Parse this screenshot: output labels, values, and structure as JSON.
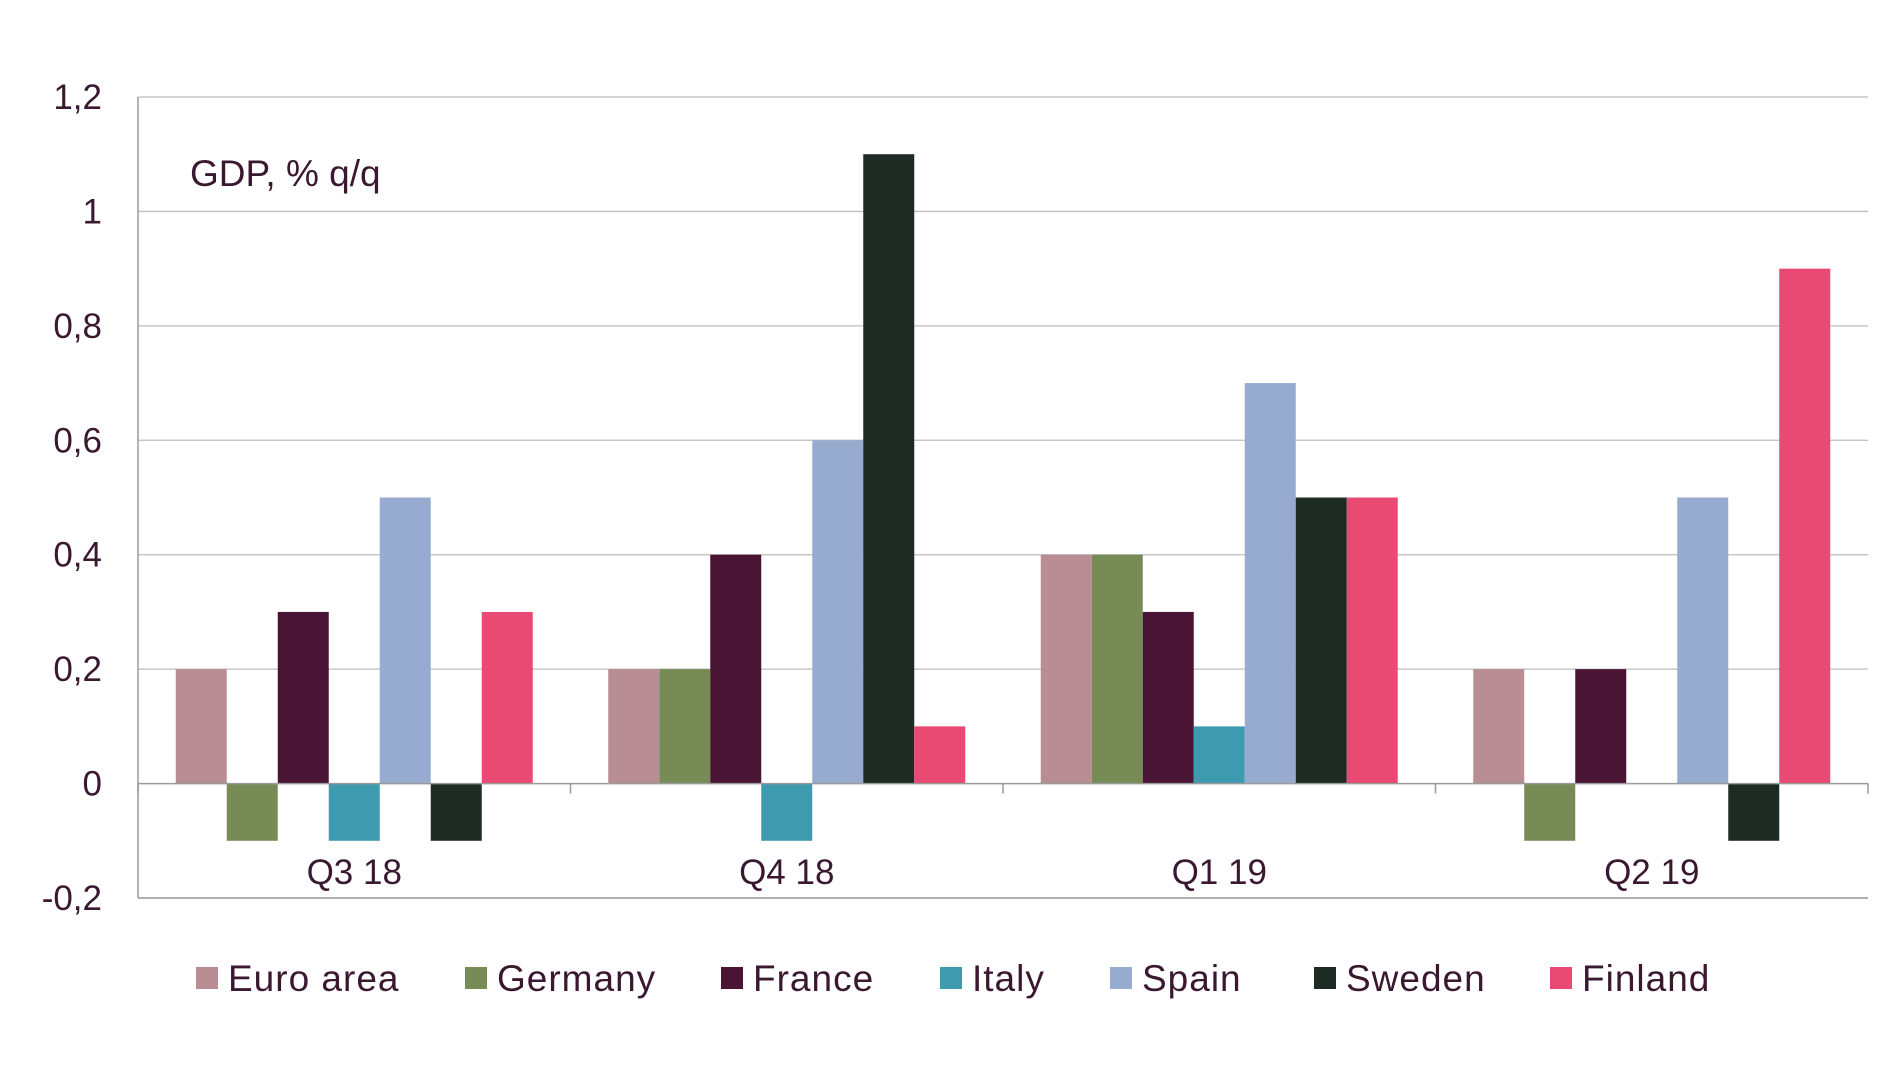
{
  "chart_data": {
    "type": "bar",
    "annotation": "GDP, % q/q",
    "categories": [
      "Q3 18",
      "Q4 18",
      "Q1 19",
      "Q2 19"
    ],
    "ylim": [
      -0.2,
      1.2
    ],
    "yticks": [
      -0.2,
      0,
      0.2,
      0.4,
      0.6,
      0.8,
      1,
      1.2
    ],
    "ytick_labels": [
      "-0,2",
      "0",
      "0,2",
      "0,4",
      "0,6",
      "0,8",
      "1",
      "1,2"
    ],
    "grid": true,
    "legend_position": "bottom",
    "series": [
      {
        "name": "Euro area",
        "color": "#b98d94",
        "values": [
          0.2,
          0.2,
          0.4,
          0.2
        ]
      },
      {
        "name": "Germany",
        "color": "#778b57",
        "values": [
          -0.1,
          0.2,
          0.4,
          -0.1
        ]
      },
      {
        "name": "France",
        "color": "#4a1535",
        "values": [
          0.3,
          0.4,
          0.3,
          0.2
        ]
      },
      {
        "name": "Italy",
        "color": "#3e9aaf",
        "values": [
          -0.1,
          -0.1,
          0.1,
          0
        ]
      },
      {
        "name": "Spain",
        "color": "#97abd1",
        "values": [
          0.5,
          0.6,
          0.7,
          0.5
        ]
      },
      {
        "name": "Sweden",
        "color": "#1e2b24",
        "values": [
          -0.1,
          1.1,
          0.5,
          -0.1
        ]
      },
      {
        "name": "Finland",
        "color": "#e84a73",
        "values": [
          0.3,
          0.1,
          0.5,
          0.9
        ]
      }
    ]
  }
}
